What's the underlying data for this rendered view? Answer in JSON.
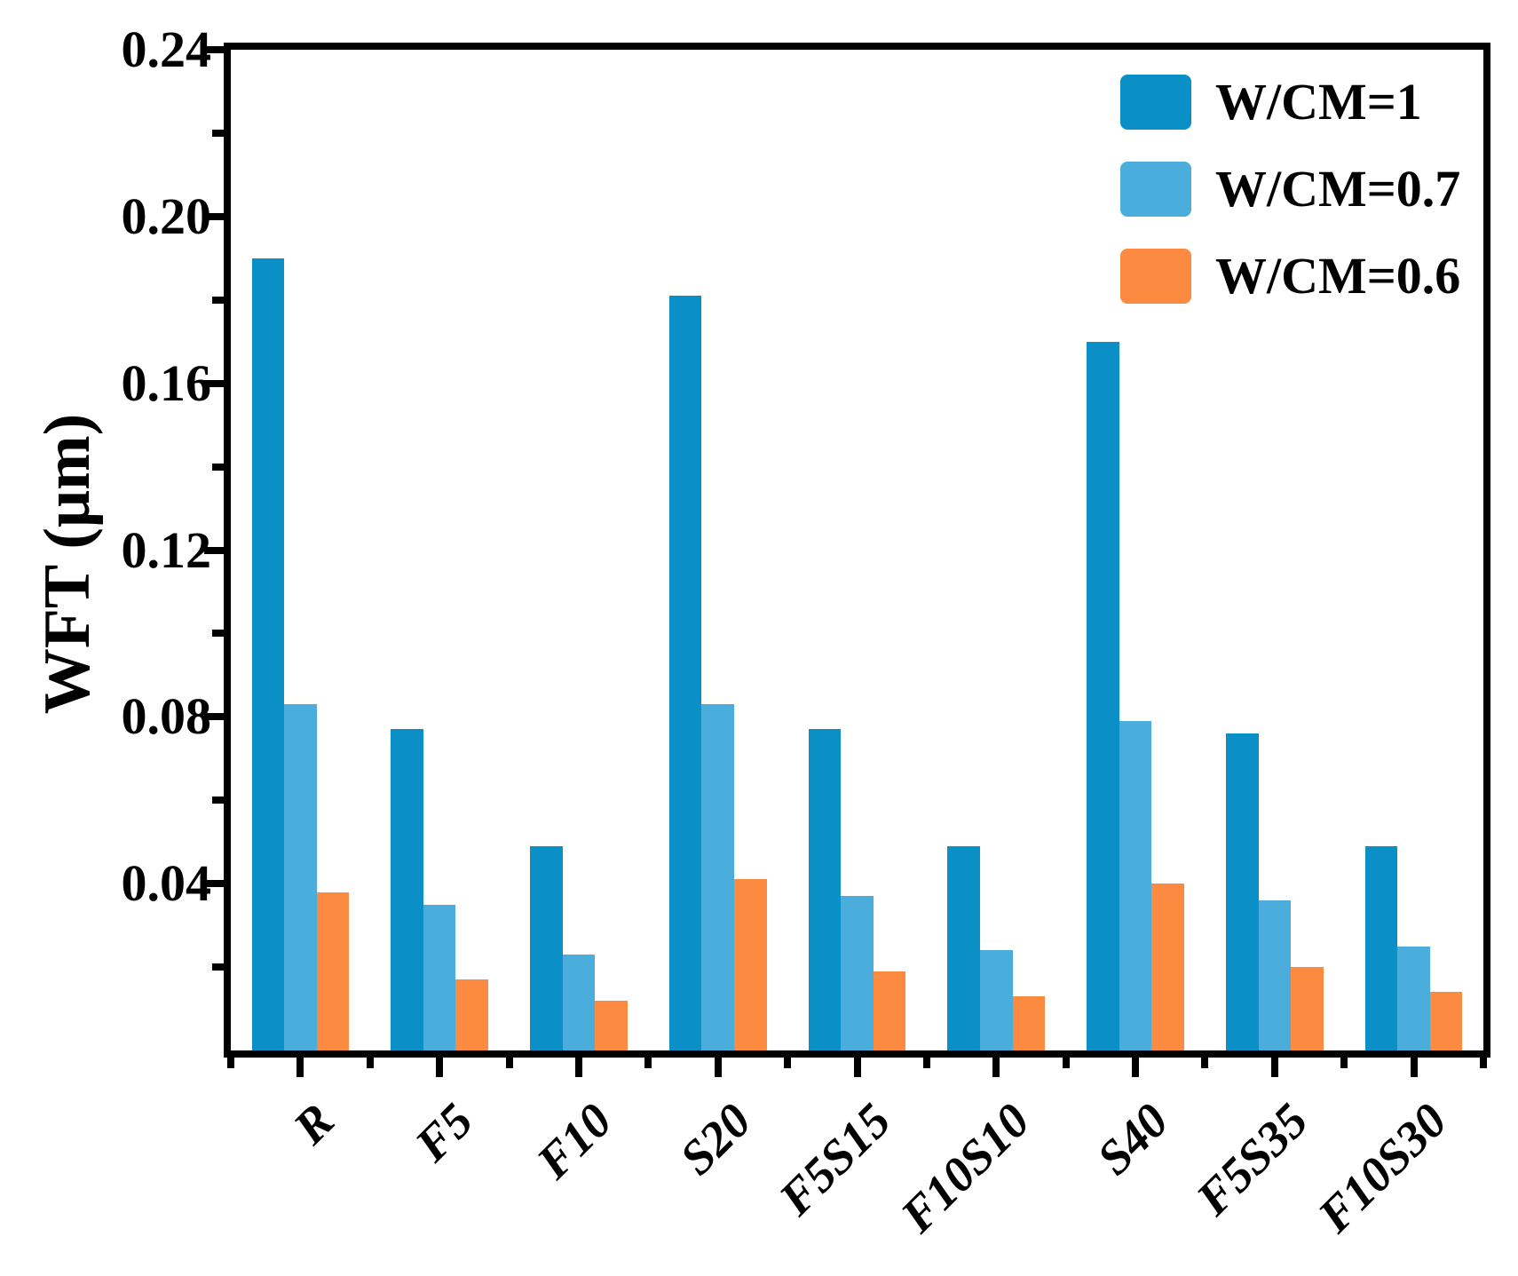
{
  "chart_data": {
    "type": "bar",
    "title": "",
    "xlabel": "",
    "ylabel": "WFT (μm)",
    "categories": [
      "R",
      "F5",
      "F10",
      "S20",
      "F5S15",
      "F10S10",
      "S40",
      "F5S35",
      "F10S30"
    ],
    "series": [
      {
        "name": "W/CM=1",
        "color": "#0A8FC6",
        "values": [
          0.19,
          0.077,
          0.049,
          0.181,
          0.077,
          0.049,
          0.17,
          0.076,
          0.049
        ]
      },
      {
        "name": "W/CM=0.7",
        "color": "#4AADDC",
        "values": [
          0.083,
          0.035,
          0.023,
          0.083,
          0.037,
          0.024,
          0.079,
          0.036,
          0.025
        ]
      },
      {
        "name": "W/CM=0.6",
        "color": "#FC8A41",
        "values": [
          0.038,
          0.017,
          0.012,
          0.041,
          0.019,
          0.013,
          0.04,
          0.02,
          0.014
        ]
      }
    ],
    "ylim": [
      0,
      0.24
    ],
    "yticks": {
      "major_values": [
        0.04,
        0.08,
        0.12,
        0.16,
        0.2,
        0.24
      ],
      "major_labels": [
        "0.04",
        "0.08",
        "0.12",
        "0.16",
        "0.20",
        "0.24"
      ],
      "minor_values": [
        0.02,
        0.06,
        0.1,
        0.14,
        0.18,
        0.22
      ]
    },
    "grid": false,
    "legend_position": "top-right-inside",
    "background": "#FFFFFF",
    "axis_color": "#000000"
  }
}
